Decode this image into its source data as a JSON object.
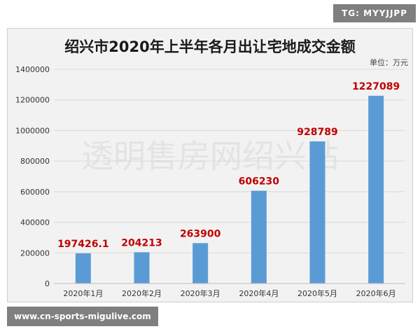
{
  "watermark_top": "TG: MYYJJPP",
  "watermark_center": "透明售房网绍兴站",
  "watermark_bottom": "www.cn-sports-migulive.com",
  "colors": {
    "bar": "#5b9bd5",
    "label": "#c00000",
    "grid": "#d9d9d9",
    "panel": "#f2f2f2"
  },
  "chart_data": {
    "type": "bar",
    "title": "绍兴市2020年上半年各月出让宅地成交金额",
    "unit_label": "单位：万元",
    "categories": [
      "2020年1月",
      "2020年2月",
      "2020年3月",
      "2020年4月",
      "2020年5月",
      "2020年6月"
    ],
    "values": [
      197426.1,
      204213,
      263900,
      606230,
      928789,
      1227089
    ],
    "data_labels": [
      "197426.1",
      "204213",
      "263900",
      "606230",
      "928789",
      "1227089"
    ],
    "ylim": [
      0,
      1400000
    ],
    "yticks": [
      0,
      200000,
      400000,
      600000,
      800000,
      1000000,
      1200000,
      1400000
    ],
    "ytick_labels": [
      "0",
      "200000",
      "400000",
      "600000",
      "800000",
      "1000000",
      "1200000",
      "1400000"
    ],
    "grid": true
  }
}
